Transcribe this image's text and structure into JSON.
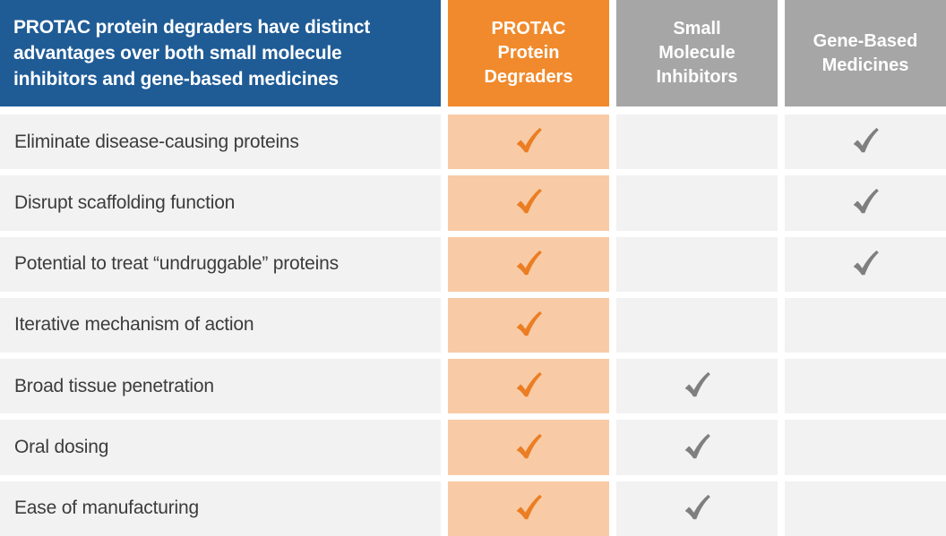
{
  "slide": {
    "title": "PROTAC protein degraders have distinct\nadvantages over both small molecule\ninhibitors and gene-based medicines"
  },
  "columns": [
    {
      "id": "protac-protein-degraders",
      "label": "PROTAC\nProtein\nDegraders",
      "style": "orange"
    },
    {
      "id": "small-molecule-inhibitors",
      "label": "Small\nMolecule\nInhibitors",
      "style": "gray"
    },
    {
      "id": "gene-based-medicines",
      "label": "Gene-Based\nMedicines",
      "style": "gray"
    }
  ],
  "rows": [
    {
      "label": "Eliminate disease-causing proteins",
      "checks": [
        true,
        false,
        true
      ]
    },
    {
      "label": "Disrupt scaffolding function",
      "checks": [
        true,
        false,
        true
      ]
    },
    {
      "label": "Potential to treat “undruggable” proteins",
      "checks": [
        true,
        false,
        true
      ]
    },
    {
      "label": "Iterative mechanism of action",
      "checks": [
        true,
        false,
        false
      ]
    },
    {
      "label": "Broad tissue penetration",
      "checks": [
        true,
        true,
        false
      ]
    },
    {
      "label": "Oral dosing",
      "checks": [
        true,
        true,
        false
      ]
    },
    {
      "label": "Ease of manufacturing",
      "checks": [
        true,
        true,
        false
      ]
    }
  ],
  "icons": {
    "check": "check-icon"
  },
  "colors": {
    "header-blue": "#1F5C96",
    "header-orange": "#F18A2C",
    "header-gray": "#A6A6A6",
    "cell-orange": "#F8CBA6",
    "cell-gray": "#F2F2F2",
    "check-orange": "#EB7D23",
    "check-gray": "#7F7F7F",
    "label-text": "#3C3C3C",
    "header-text": "#FFFFFF"
  }
}
